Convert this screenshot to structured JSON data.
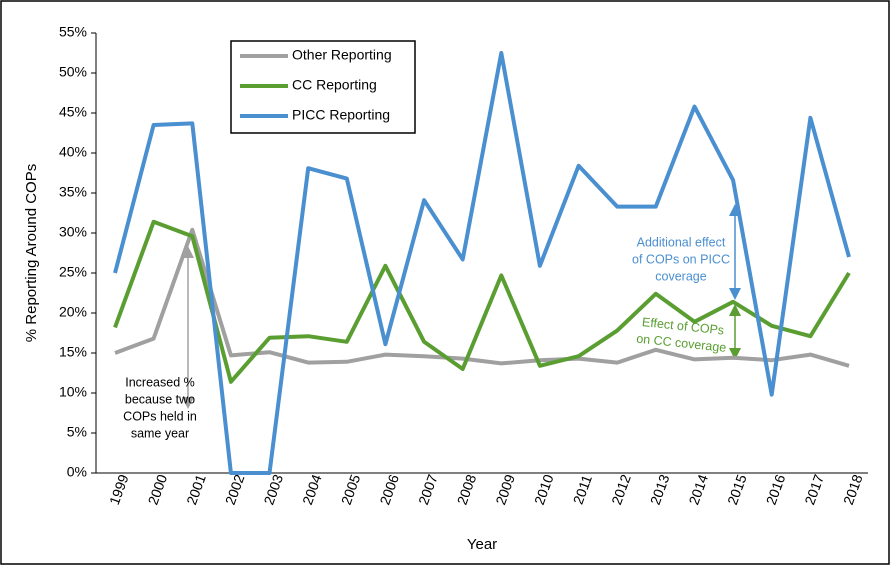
{
  "chart_data": {
    "type": "line",
    "ylabel": "% Reporting Around COPs",
    "xlabel": "Year",
    "categories": [
      "1999",
      "2000",
      "2001",
      "2002",
      "2003",
      "2004",
      "2005",
      "2006",
      "2007",
      "2008",
      "2009",
      "2010",
      "2011",
      "2012",
      "2013",
      "2014",
      "2015",
      "2016",
      "2017",
      "2018"
    ],
    "series": [
      {
        "name": "Other Reporting",
        "color": "#a0a0a0",
        "values": [
          15.0,
          16.8,
          30.4,
          14.7,
          15.1,
          13.8,
          13.9,
          14.8,
          14.6,
          14.3,
          13.7,
          14.1,
          14.3,
          13.8,
          15.4,
          14.2,
          14.4,
          14.1,
          14.8,
          13.4
        ]
      },
      {
        "name": "CC Reporting",
        "color": "#5a9e32",
        "values": [
          18.2,
          31.4,
          29.6,
          11.4,
          16.9,
          17.1,
          16.4,
          25.9,
          16.4,
          13.0,
          24.7,
          13.4,
          14.6,
          17.8,
          22.4,
          18.9,
          21.4,
          18.4,
          17.1,
          25.0
        ]
      },
      {
        "name": "PICC Reporting",
        "color": "#4a8fd0",
        "values": [
          25.0,
          43.5,
          43.7,
          0,
          0,
          38.1,
          36.8,
          16.1,
          34.1,
          26.7,
          52.5,
          25.9,
          38.4,
          33.3,
          33.3,
          45.8,
          36.6,
          9.8,
          44.4,
          27.0
        ]
      }
    ],
    "ylim": [
      0,
      55
    ],
    "yticks": [
      {
        "value": 0,
        "label": "0%"
      },
      {
        "value": 5,
        "label": "5%"
      },
      {
        "value": 10,
        "label": "10%"
      },
      {
        "value": 15,
        "label": "15%"
      },
      {
        "value": 20,
        "label": "20%"
      },
      {
        "value": 25,
        "label": "25%"
      },
      {
        "value": 30,
        "label": "30%"
      },
      {
        "value": 35,
        "label": "35%"
      },
      {
        "value": 40,
        "label": "40%"
      },
      {
        "value": 45,
        "label": "45%"
      },
      {
        "value": 50,
        "label": "50%"
      },
      {
        "value": 55,
        "label": "55%"
      }
    ],
    "annotations": [
      {
        "lines": [
          "Increased %",
          "because two",
          "COPs held in",
          "same year"
        ],
        "color": "#000000"
      },
      {
        "lines": [
          "Additional effect",
          "of COPs on PICC",
          "coverage"
        ],
        "color": "#4a8fd0"
      },
      {
        "lines": [
          "Effect of COPs",
          "on CC coverage"
        ],
        "color": "#5a9e32"
      }
    ]
  }
}
